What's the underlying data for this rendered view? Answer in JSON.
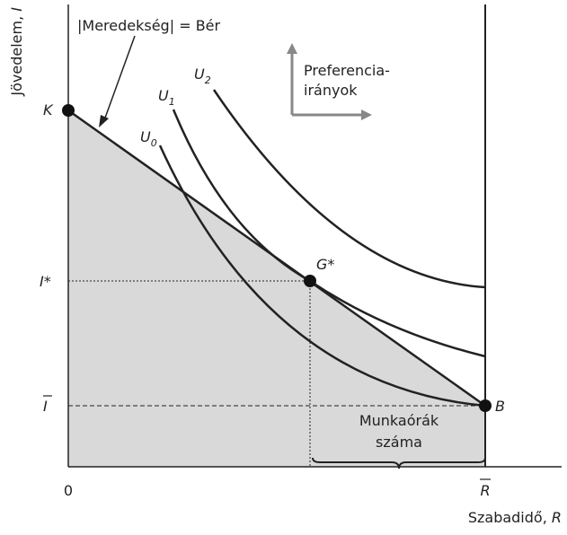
{
  "y_axis_label": {
    "text": "Jövedelem,",
    "symbol": "I"
  },
  "x_axis_label": {
    "text": "Szabadidő,",
    "symbol": "R"
  },
  "slope_label": {
    "left": "|Meredekség|",
    "right": "= Bér"
  },
  "preference": {
    "line1": "Preferencia-",
    "line2": "irányok"
  },
  "curves": [
    {
      "letter": "U",
      "sub": "0"
    },
    {
      "letter": "U",
      "sub": "1"
    },
    {
      "letter": "U",
      "sub": "2"
    }
  ],
  "points": {
    "k": "K",
    "g": "G*",
    "b": "B"
  },
  "y_labels": {
    "i_star": "I*",
    "i_bar": "I"
  },
  "x_labels": {
    "origin": "0",
    "r_bar": "R"
  },
  "brace_label": {
    "line1": "Munkaórák",
    "line2": "száma"
  }
}
